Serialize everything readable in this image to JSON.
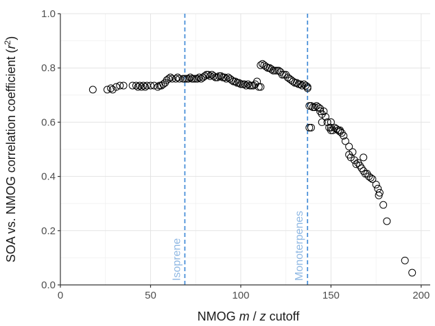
{
  "chart_data": {
    "type": "scatter",
    "xlabel_parts": [
      "NMOG ",
      "m",
      " / ",
      "z",
      " cutoff"
    ],
    "ylabel_parts": [
      "SOA vs. NMOG correlation coefficient (",
      "r",
      "2",
      ")"
    ],
    "xlim": [
      0,
      205
    ],
    "ylim": [
      0,
      1.0
    ],
    "xticks": [
      0,
      50,
      100,
      150,
      200
    ],
    "yticks": [
      0.0,
      0.2,
      0.4,
      0.6,
      0.8,
      1.0
    ],
    "xtick_labels": [
      "0",
      "50",
      "100",
      "150",
      "200"
    ],
    "ytick_labels": [
      "0.0",
      "0.2",
      "0.4",
      "0.6",
      "0.8",
      "1.0"
    ],
    "grid": true,
    "marker": "open-circle",
    "marker_color": "#000000",
    "reference_line_color": "#4a90d9",
    "annotation_color": "#8fb8e3",
    "reference_lines": [
      {
        "x": 69,
        "label": "Isoprene"
      },
      {
        "x": 137,
        "label": "Monoterpenes"
      }
    ],
    "points": [
      [
        18,
        0.72
      ],
      [
        26,
        0.72
      ],
      [
        28,
        0.725
      ],
      [
        29,
        0.72
      ],
      [
        31,
        0.73
      ],
      [
        33,
        0.735
      ],
      [
        35,
        0.735
      ],
      [
        40,
        0.735
      ],
      [
        42,
        0.735
      ],
      [
        43,
        0.73
      ],
      [
        44,
        0.735
      ],
      [
        45,
        0.73
      ],
      [
        46,
        0.735
      ],
      [
        47,
        0.73
      ],
      [
        48,
        0.735
      ],
      [
        50,
        0.735
      ],
      [
        52,
        0.735
      ],
      [
        54,
        0.73
      ],
      [
        55,
        0.735
      ],
      [
        56,
        0.735
      ],
      [
        57,
        0.74
      ],
      [
        58,
        0.745
      ],
      [
        59,
        0.755
      ],
      [
        60,
        0.76
      ],
      [
        61,
        0.765
      ],
      [
        62,
        0.76
      ],
      [
        64,
        0.76
      ],
      [
        65,
        0.765
      ],
      [
        66,
        0.76
      ],
      [
        68,
        0.76
      ],
      [
        69,
        0.76
      ],
      [
        70,
        0.76
      ],
      [
        71,
        0.76
      ],
      [
        72,
        0.765
      ],
      [
        73,
        0.76
      ],
      [
        74,
        0.76
      ],
      [
        75,
        0.76
      ],
      [
        76,
        0.76
      ],
      [
        77,
        0.765
      ],
      [
        78,
        0.76
      ],
      [
        79,
        0.765
      ],
      [
        80,
        0.77
      ],
      [
        81,
        0.775
      ],
      [
        82,
        0.775
      ],
      [
        83,
        0.77
      ],
      [
        84,
        0.775
      ],
      [
        85,
        0.77
      ],
      [
        86,
        0.765
      ],
      [
        87,
        0.765
      ],
      [
        88,
        0.77
      ],
      [
        89,
        0.77
      ],
      [
        90,
        0.765
      ],
      [
        91,
        0.765
      ],
      [
        92,
        0.76
      ],
      [
        93,
        0.765
      ],
      [
        94,
        0.76
      ],
      [
        95,
        0.755
      ],
      [
        96,
        0.75
      ],
      [
        97,
        0.75
      ],
      [
        98,
        0.745
      ],
      [
        99,
        0.745
      ],
      [
        100,
        0.74
      ],
      [
        101,
        0.74
      ],
      [
        102,
        0.74
      ],
      [
        103,
        0.735
      ],
      [
        104,
        0.74
      ],
      [
        105,
        0.735
      ],
      [
        106,
        0.735
      ],
      [
        107,
        0.735
      ],
      [
        108,
        0.74
      ],
      [
        109,
        0.75
      ],
      [
        110,
        0.73
      ],
      [
        111,
        0.73
      ],
      [
        111,
        0.81
      ],
      [
        112,
        0.815
      ],
      [
        113,
        0.81
      ],
      [
        114,
        0.805
      ],
      [
        115,
        0.8
      ],
      [
        116,
        0.8
      ],
      [
        117,
        0.795
      ],
      [
        118,
        0.79
      ],
      [
        119,
        0.79
      ],
      [
        120,
        0.79
      ],
      [
        121,
        0.79
      ],
      [
        122,
        0.785
      ],
      [
        123,
        0.775
      ],
      [
        124,
        0.775
      ],
      [
        125,
        0.775
      ],
      [
        126,
        0.765
      ],
      [
        127,
        0.76
      ],
      [
        128,
        0.755
      ],
      [
        129,
        0.75
      ],
      [
        130,
        0.745
      ],
      [
        131,
        0.745
      ],
      [
        132,
        0.74
      ],
      [
        133,
        0.74
      ],
      [
        134,
        0.735
      ],
      [
        135,
        0.74
      ],
      [
        136,
        0.735
      ],
      [
        137,
        0.725
      ],
      [
        137,
        0.73
      ],
      [
        138,
        0.66
      ],
      [
        139,
        0.66
      ],
      [
        140,
        0.655
      ],
      [
        141,
        0.655
      ],
      [
        142,
        0.66
      ],
      [
        143,
        0.655
      ],
      [
        144,
        0.65
      ],
      [
        144,
        0.64
      ],
      [
        145,
        0.63
      ],
      [
        146,
        0.64
      ],
      [
        147,
        0.62
      ],
      [
        148,
        0.6
      ],
      [
        149,
        0.58
      ],
      [
        150,
        0.58
      ],
      [
        151,
        0.57
      ],
      [
        152,
        0.58
      ],
      [
        153,
        0.575
      ],
      [
        154,
        0.57
      ],
      [
        155,
        0.565
      ],
      [
        156,
        0.56
      ],
      [
        157,
        0.55
      ],
      [
        158,
        0.53
      ],
      [
        160,
        0.51
      ],
      [
        161,
        0.47
      ],
      [
        162,
        0.49
      ],
      [
        163,
        0.46
      ],
      [
        164,
        0.445
      ],
      [
        165,
        0.45
      ],
      [
        166,
        0.44
      ],
      [
        167,
        0.43
      ],
      [
        168,
        0.42
      ],
      [
        169,
        0.41
      ],
      [
        170,
        0.41
      ],
      [
        171,
        0.4
      ],
      [
        172,
        0.395
      ],
      [
        173,
        0.39
      ],
      [
        175,
        0.37
      ],
      [
        176,
        0.355
      ],
      [
        177,
        0.34
      ],
      [
        176.5,
        0.33
      ],
      [
        179,
        0.295
      ],
      [
        181,
        0.235
      ],
      [
        191,
        0.09
      ],
      [
        195,
        0.045
      ],
      [
        138,
        0.58
      ],
      [
        139,
        0.58
      ],
      [
        160,
        0.48
      ],
      [
        168,
        0.47
      ],
      [
        145,
        0.6
      ],
      [
        150,
        0.57
      ],
      [
        155,
        0.57
      ],
      [
        150,
        0.6
      ]
    ]
  }
}
